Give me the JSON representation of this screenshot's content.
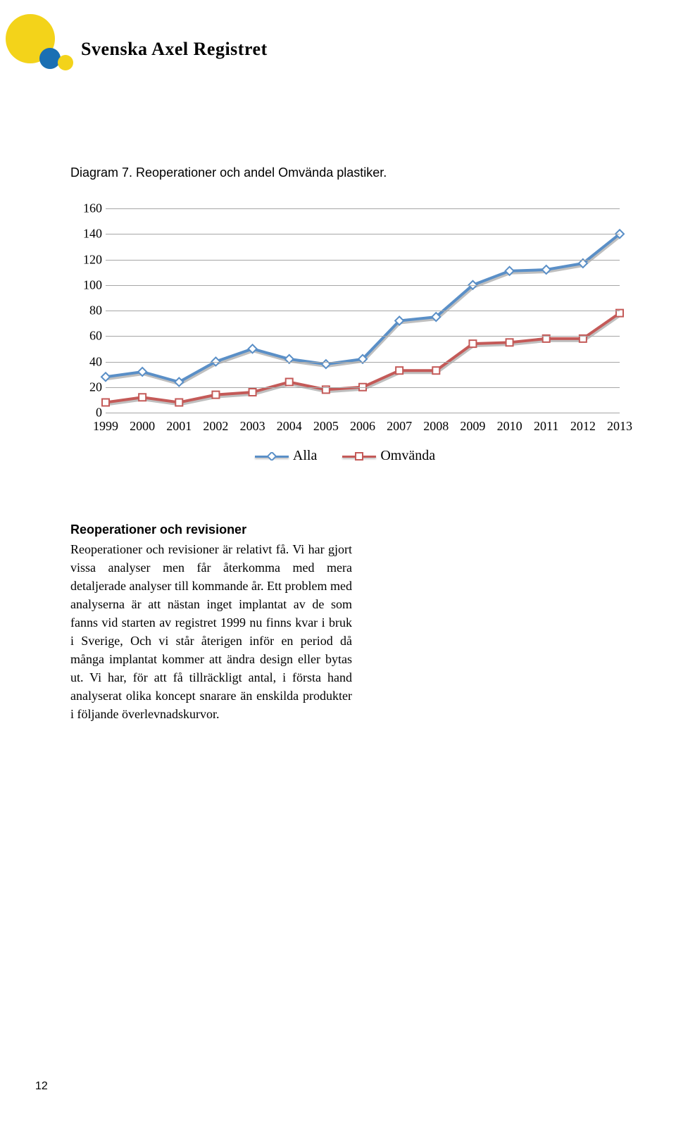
{
  "header": {
    "title": "Svenska Axel Registret",
    "logo": {
      "big_yellow": "#f3d31a",
      "small_blue": "#1a6fb3",
      "small_yellow": "#f3d31a"
    }
  },
  "caption": "Diagram 7. Reoperationer och andel Omvända plastiker.",
  "chart": {
    "type": "line",
    "ylim": [
      0,
      160
    ],
    "ytick_step": 20,
    "yticks": [
      "0",
      "20",
      "40",
      "60",
      "80",
      "100",
      "120",
      "140",
      "160"
    ],
    "xlabels": [
      "1999",
      "2000",
      "2001",
      "2002",
      "2003",
      "2004",
      "2005",
      "2006",
      "2007",
      "2008",
      "2009",
      "2010",
      "2011",
      "2012",
      "2013"
    ],
    "grid_color": "#a6a6a6",
    "background_color": "#ffffff",
    "series": [
      {
        "name": "Alla",
        "color": "#5a8fc7",
        "marker_border": "#5a8fc7",
        "marker_fill": "#ffffff",
        "marker_shape": "diamond",
        "line_width": 4,
        "values": [
          28,
          32,
          24,
          40,
          50,
          42,
          38,
          42,
          72,
          75,
          100,
          111,
          112,
          117,
          140
        ]
      },
      {
        "name": "Omvända",
        "color": "#c45a58",
        "marker_border": "#c45a58",
        "marker_fill": "#ffffff",
        "marker_shape": "square",
        "line_width": 4,
        "values": [
          8,
          12,
          8,
          14,
          16,
          24,
          18,
          20,
          33,
          33,
          54,
          55,
          58,
          58,
          78
        ]
      }
    ],
    "legend": {
      "items": [
        {
          "label": "Alla",
          "series_index": 0
        },
        {
          "label": "Omvända",
          "series_index": 1
        }
      ]
    }
  },
  "section": {
    "heading": "Reoperationer och revisioner",
    "body": "Reoperationer och revisioner är relativt få. Vi har gjort vissa analyser men får återkomma med mera detaljerade analyser till kommande år. Ett problem med analyserna är att nästan inget implantat av de som fanns vid starten av registret 1999 nu finns kvar i bruk i Sverige, Och vi står återigen inför en period då många implantat kommer att ändra design eller bytas ut. Vi har, för att få tillräckligt antal, i första hand analyserat olika koncept snarare än enskilda produkter i följande överlevnadskurvor."
  },
  "page_number": "12"
}
